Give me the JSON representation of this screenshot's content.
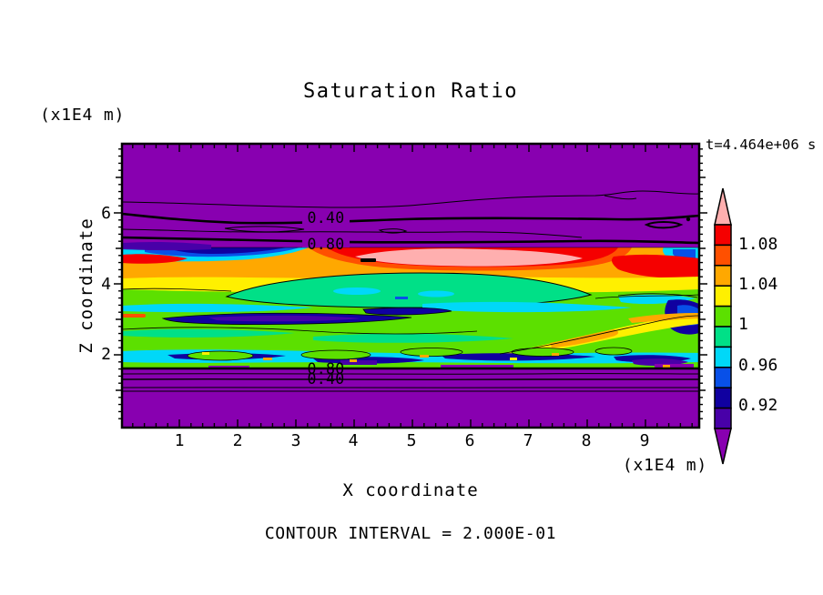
{
  "title": "Saturation Ratio",
  "time_label": "t=4.464e+06 s",
  "contour_interval_text": "CONTOUR INTERVAL = 2.000E-01",
  "axes": {
    "x": {
      "label": "X coordinate",
      "unit": "(x1E4 m)",
      "ticks": [
        "1",
        "2",
        "3",
        "4",
        "5",
        "6",
        "7",
        "8",
        "9"
      ]
    },
    "y": {
      "label": "Z coordinate",
      "unit": "(x1E4 m)",
      "ticks": [
        "6",
        "4",
        "2"
      ]
    }
  },
  "colorbar": {
    "labels": [
      "1.08",
      "1.04",
      "1",
      "0.96",
      "0.92"
    ],
    "colors_top_to_bottom": [
      "#FFAFAF",
      "#F50000",
      "#FF5000",
      "#FFA800",
      "#FFF000",
      "#5CE000",
      "#00E087",
      "#00D8F8",
      "#0850E8",
      "#1000A0",
      "#4800A8",
      "#8800B0"
    ],
    "cell_value_step": 0.02
  },
  "contour_labels": {
    "top_040": "0.40",
    "top_080": "0.80",
    "bottom_080": "0.80",
    "bottom_040": "0.40"
  },
  "chart_data": {
    "type": "heatmap",
    "title": "Saturation Ratio",
    "xlabel": "X coordinate",
    "ylabel": "Z coordinate",
    "x_unit": "(x1E4 m)",
    "y_unit": "(x1E4 m)",
    "xlim": [
      0,
      9.9
    ],
    "ylim": [
      0,
      8
    ],
    "x_ticks": [
      1,
      2,
      3,
      4,
      5,
      6,
      7,
      8,
      9
    ],
    "y_ticks": [
      2,
      4,
      6
    ],
    "minor_tick_step": 0.2,
    "time": "t=4.464e+06 s",
    "contour_interval": "2.000E-01",
    "colorbar_tick_values": [
      1.08,
      1.04,
      1,
      0.96,
      0.92
    ],
    "colorbar_range": [
      0.9,
      1.1
    ],
    "colorbar_cell_interval": 0.02,
    "labeled_line_contours_upper_to_lower": [
      0.4,
      0.8,
      0.8,
      0.4
    ],
    "field_summary": "High-saturation colored band (~0.9-1.1, cyan/green/yellow/orange/red with pink maximum lens near x=4-6, z=4.9) between z~1.7 and z~5.2; uniform purple low-saturation regions above and below with line contours at 0.2, 0.4, 0.6, 0.8 near the band edges; dark navy/indigo streaks inside band near z=3.5 and z=2-2.3",
    "grid": false,
    "legend_position": "right-colorbar"
  }
}
